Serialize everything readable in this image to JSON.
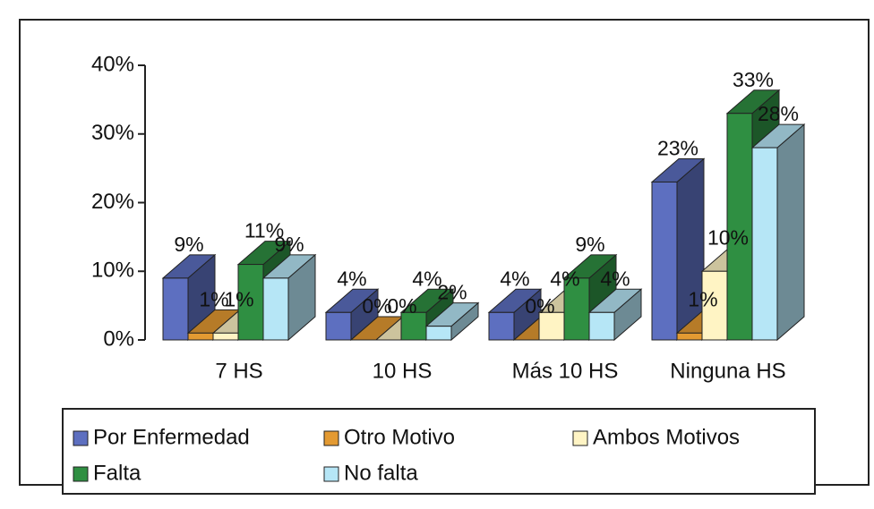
{
  "chart_data": {
    "type": "bar3d",
    "categories": [
      "7 HS",
      "10 HS",
      "Más 10 HS",
      "Ninguna HS"
    ],
    "series": [
      {
        "name": "Por Enfermedad",
        "color": "#5d6fc0",
        "values": [
          9,
          4,
          4,
          23
        ],
        "value_labels": [
          "9%",
          "4%",
          "4%",
          "23%"
        ]
      },
      {
        "name": "Otro Motivo",
        "color": "#e39a32",
        "values": [
          1,
          0,
          0,
          1
        ],
        "value_labels": [
          "1%",
          "0%",
          "0%",
          "1%"
        ]
      },
      {
        "name": "Ambos Motivos",
        "color": "#fff4c4",
        "values": [
          1,
          0,
          4,
          10
        ],
        "value_labels": [
          "1%",
          "0%",
          "4%",
          "10%"
        ]
      },
      {
        "name": "Falta",
        "color": "#2f8f42",
        "values": [
          11,
          4,
          9,
          33
        ],
        "value_labels": [
          "11%",
          "4%",
          "9%",
          "33%"
        ]
      },
      {
        "name": "No falta",
        "color": "#b6e6f6",
        "values": [
          9,
          2,
          4,
          28
        ],
        "value_labels": [
          "9%",
          "2%",
          "4%",
          "28%"
        ]
      }
    ],
    "ylim": [
      0,
      40
    ],
    "yticks": [
      {
        "value": 0,
        "label": "0%"
      },
      {
        "value": 10,
        "label": "10%"
      },
      {
        "value": 20,
        "label": "20%"
      },
      {
        "value": 30,
        "label": "30%"
      },
      {
        "value": 40,
        "label": "40%"
      }
    ]
  }
}
